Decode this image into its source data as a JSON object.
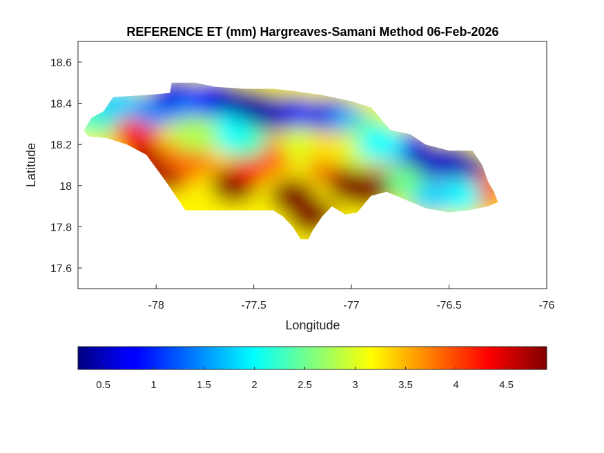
{
  "chart_data": {
    "type": "heatmap",
    "title": "REFERENCE ET (mm) Hargreaves-Samani Method  06-Feb-2026",
    "xlabel": "Longitude",
    "ylabel": "Latitude",
    "xlim": [
      -78.4,
      -76
    ],
    "ylim": [
      17.5,
      18.7
    ],
    "x_ticks": [
      -78,
      -77.5,
      -77,
      -76.5,
      -76
    ],
    "x_tick_labels": [
      "-78",
      "-77.5",
      "-77",
      "-76.5",
      "-76"
    ],
    "y_ticks": [
      17.6,
      17.8,
      18,
      18.2,
      18.4,
      18.6
    ],
    "y_tick_labels": [
      "17.6",
      "17.8",
      "18",
      "18.2",
      "18.4",
      "18.6"
    ],
    "colormap": "jet",
    "colorbar": {
      "range": [
        0.25,
        4.9
      ],
      "orientation": "horizontal",
      "location": "bottom",
      "ticks": [
        0.5,
        1,
        1.5,
        2,
        2.5,
        3,
        3.5,
        4,
        4.5
      ],
      "tick_labels": [
        "0.5",
        "1",
        "1.5",
        "2",
        "2.5",
        "3",
        "3.5",
        "4",
        "4.5"
      ]
    },
    "region": "Jamaica",
    "outline_lonlat": [
      [
        -78.37,
        18.27
      ],
      [
        -78.33,
        18.33
      ],
      [
        -78.27,
        18.36
      ],
      [
        -78.22,
        18.43
      ],
      [
        -78.05,
        18.44
      ],
      [
        -77.93,
        18.45
      ],
      [
        -77.92,
        18.5
      ],
      [
        -77.8,
        18.5
      ],
      [
        -77.7,
        18.48
      ],
      [
        -77.55,
        18.47
      ],
      [
        -77.4,
        18.47
      ],
      [
        -77.3,
        18.46
      ],
      [
        -77.15,
        18.44
      ],
      [
        -77.0,
        18.41
      ],
      [
        -76.9,
        18.38
      ],
      [
        -76.8,
        18.27
      ],
      [
        -76.7,
        18.25
      ],
      [
        -76.62,
        18.2
      ],
      [
        -76.5,
        18.17
      ],
      [
        -76.38,
        18.17
      ],
      [
        -76.33,
        18.1
      ],
      [
        -76.3,
        18.02
      ],
      [
        -76.27,
        17.97
      ],
      [
        -76.25,
        17.92
      ],
      [
        -76.3,
        17.9
      ],
      [
        -76.4,
        17.88
      ],
      [
        -76.5,
        17.87
      ],
      [
        -76.62,
        17.89
      ],
      [
        -76.72,
        17.93
      ],
      [
        -76.82,
        17.97
      ],
      [
        -76.9,
        17.95
      ],
      [
        -76.97,
        17.87
      ],
      [
        -77.03,
        17.86
      ],
      [
        -77.1,
        17.9
      ],
      [
        -77.15,
        17.85
      ],
      [
        -77.2,
        17.78
      ],
      [
        -77.22,
        17.74
      ],
      [
        -77.26,
        17.74
      ],
      [
        -77.3,
        17.8
      ],
      [
        -77.35,
        17.85
      ],
      [
        -77.4,
        17.88
      ],
      [
        -77.55,
        17.88
      ],
      [
        -77.7,
        17.88
      ],
      [
        -77.85,
        17.88
      ],
      [
        -77.95,
        18.02
      ],
      [
        -78.05,
        18.15
      ],
      [
        -78.15,
        18.2
      ],
      [
        -78.25,
        18.23
      ],
      [
        -78.35,
        18.24
      ]
    ],
    "et_field_anchors_lonlat_value": [
      [
        -78.3,
        18.33,
        2.3
      ],
      [
        -78.2,
        18.4,
        1.8
      ],
      [
        -78.1,
        18.25,
        4.2
      ],
      [
        -78.0,
        18.37,
        1.5
      ],
      [
        -77.9,
        18.44,
        0.7
      ],
      [
        -77.8,
        18.36,
        1.4
      ],
      [
        -77.7,
        18.43,
        0.9
      ],
      [
        -77.6,
        18.4,
        0.5
      ],
      [
        -77.5,
        18.38,
        0.4
      ],
      [
        -77.4,
        18.35,
        0.4
      ],
      [
        -77.3,
        18.35,
        0.6
      ],
      [
        -77.2,
        18.33,
        0.9
      ],
      [
        -77.1,
        18.34,
        0.7
      ],
      [
        -77.0,
        18.3,
        1.6
      ],
      [
        -76.9,
        18.25,
        2.5
      ],
      [
        -76.8,
        18.12,
        4.0
      ],
      [
        -76.7,
        18.18,
        0.8
      ],
      [
        -76.6,
        18.12,
        0.5
      ],
      [
        -76.5,
        18.12,
        0.6
      ],
      [
        -76.4,
        18.07,
        0.5
      ],
      [
        -76.33,
        17.97,
        4.0
      ],
      [
        -76.45,
        17.95,
        2.0
      ],
      [
        -76.6,
        17.95,
        1.8
      ],
      [
        -76.75,
        18.02,
        2.5
      ],
      [
        -78.05,
        18.12,
        4.6
      ],
      [
        -77.95,
        18.05,
        4.7
      ],
      [
        -77.85,
        18.15,
        3.8
      ],
      [
        -77.75,
        18.05,
        3.8
      ],
      [
        -77.7,
        17.98,
        3.2
      ],
      [
        -77.6,
        18.0,
        4.9
      ],
      [
        -77.5,
        18.1,
        4.2
      ],
      [
        -77.4,
        18.15,
        3.9
      ],
      [
        -77.3,
        17.95,
        4.9
      ],
      [
        -77.2,
        17.85,
        4.9
      ],
      [
        -77.1,
        18.1,
        4.4
      ],
      [
        -77.0,
        18.0,
        4.9
      ],
      [
        -76.92,
        17.98,
        4.9
      ],
      [
        -77.55,
        18.22,
        2.3
      ],
      [
        -77.65,
        18.26,
        2.0
      ],
      [
        -77.8,
        18.25,
        2.8
      ],
      [
        -77.25,
        18.2,
        3.0
      ],
      [
        -77.1,
        18.18,
        3.3
      ],
      [
        -76.95,
        18.16,
        3.0
      ],
      [
        -76.85,
        18.2,
        2.0
      ]
    ]
  }
}
